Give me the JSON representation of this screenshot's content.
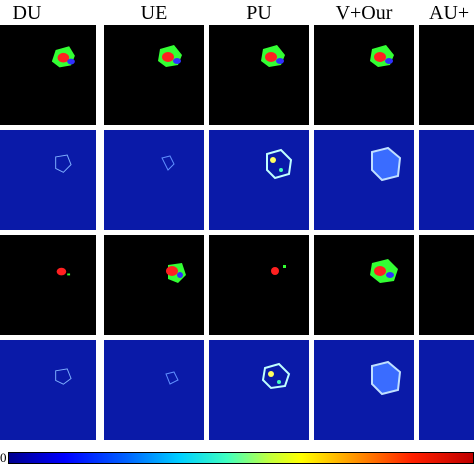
{
  "figure": {
    "columns": [
      {
        "label": "DU"
      },
      {
        "label": "UE"
      },
      {
        "label": "PU"
      },
      {
        "label": "V+Our"
      },
      {
        "label": "AU+"
      }
    ],
    "rows": [
      {
        "kind": "segmentation"
      },
      {
        "kind": "uncertainty"
      },
      {
        "kind": "segmentation"
      },
      {
        "kind": "uncertainty"
      }
    ],
    "colorbar": {
      "min_label": "0",
      "colormap": "jet"
    },
    "colors": {
      "segmentation_bg": "#000000",
      "uncertainty_bg": "#0a1aa8",
      "label_green": "#33ff33",
      "label_red": "#ff2020",
      "label_blue": "#3030ff"
    }
  }
}
